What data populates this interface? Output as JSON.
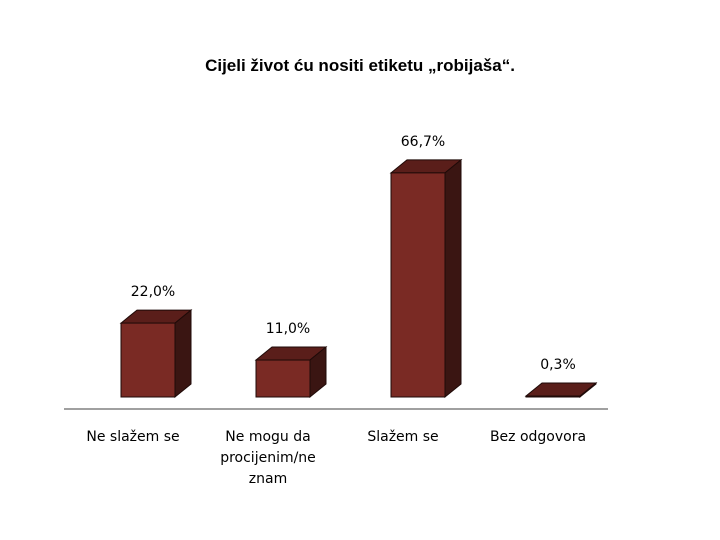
{
  "chart_data": {
    "type": "bar",
    "title": "Cijeli život ću nositi etiketu „robijaša“.",
    "categories": [
      "Ne slažem se",
      "Ne mogu da procijenim/ne znam",
      "Slažem se",
      "Bez odgovora"
    ],
    "category_lines": [
      [
        "Ne slažem se"
      ],
      [
        "Ne mogu da",
        "procijenim/ne",
        "znam"
      ],
      [
        "Slažem se"
      ],
      [
        "Bez odgovora"
      ]
    ],
    "values": [
      22.0,
      11.0,
      66.7,
      0.3
    ],
    "value_labels": [
      "22,0%",
      "11,0%",
      "66,7%",
      "0,3%"
    ],
    "style": "3d",
    "grid": false,
    "legend": "none",
    "colors": {
      "front": "#7a2a24",
      "side": "#3a1512",
      "top": "#5a1e1a",
      "edge": "#1f0a08",
      "axis": "#808080"
    }
  }
}
